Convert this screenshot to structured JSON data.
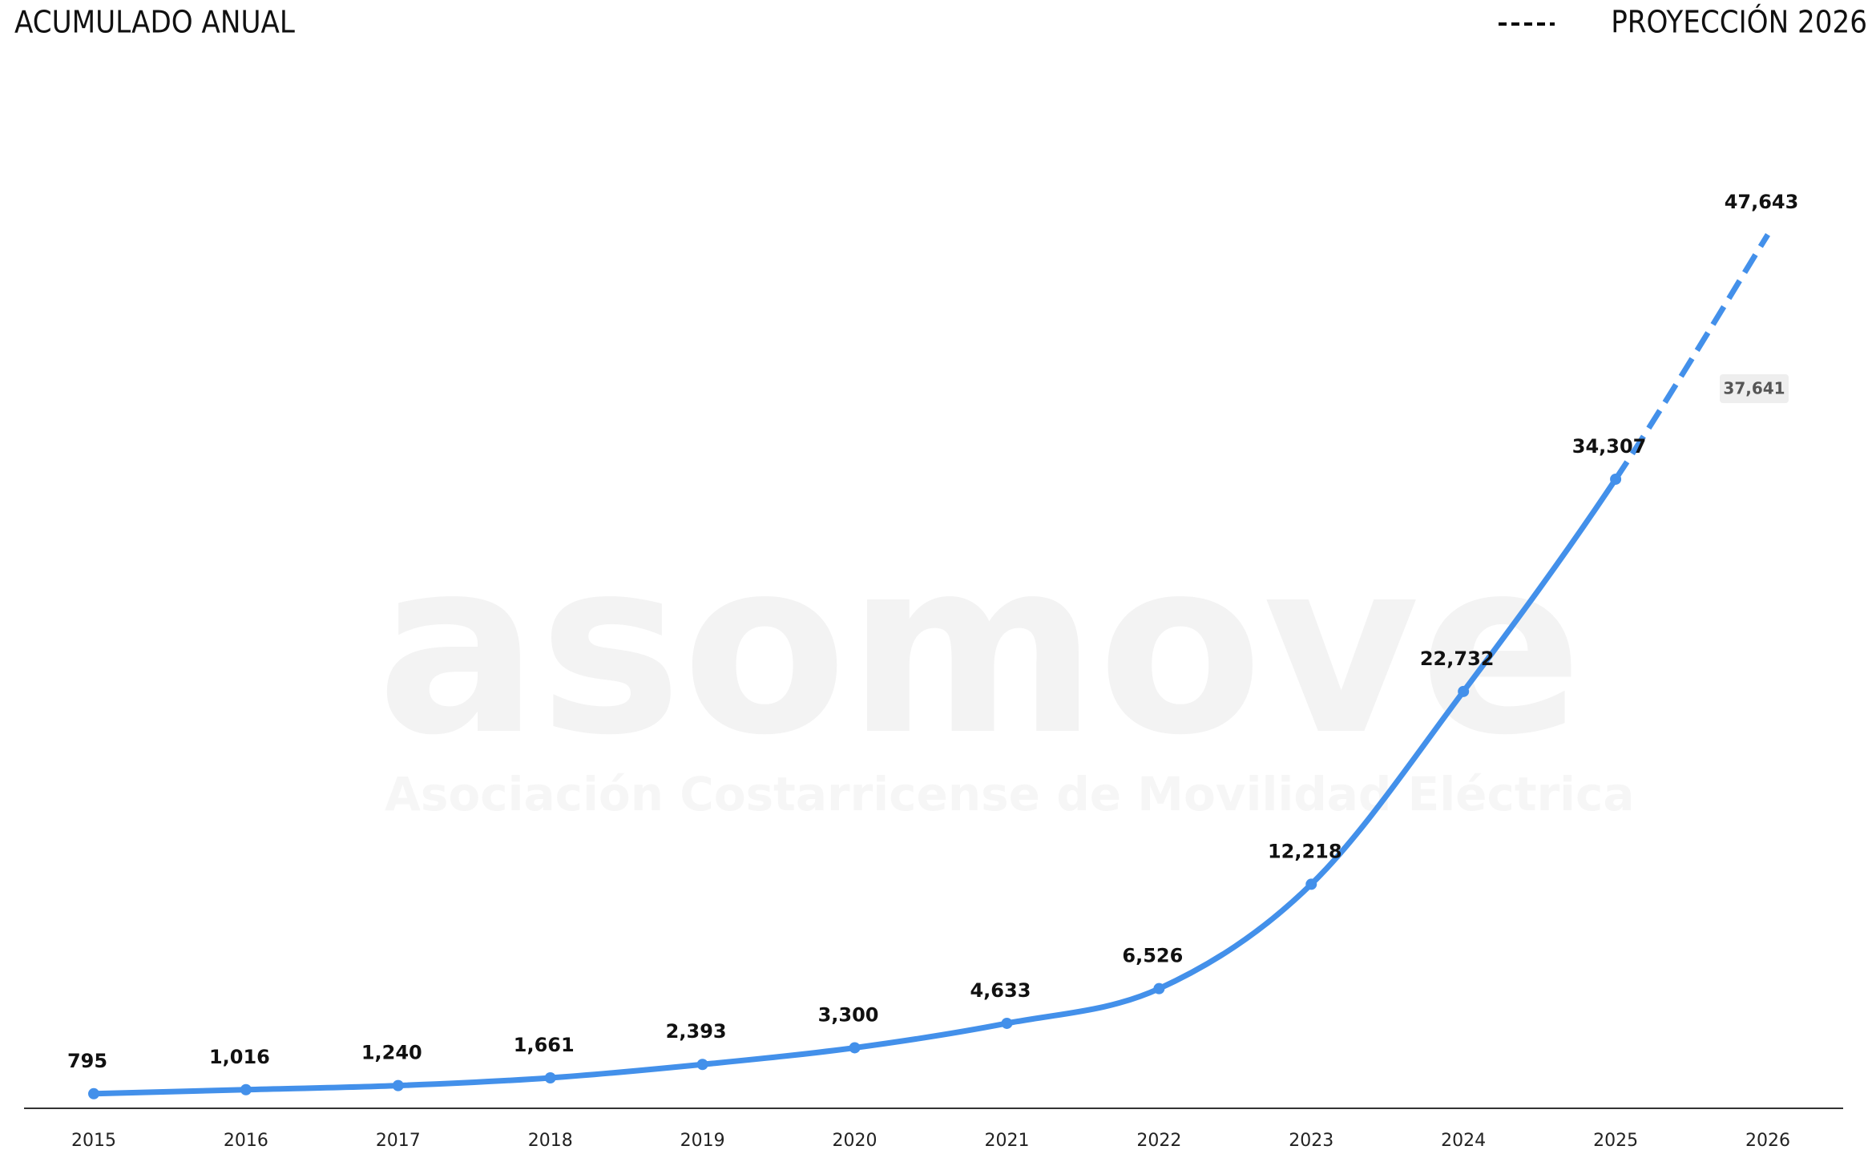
{
  "chart_data": {
    "type": "line",
    "title": "ACUMULADO ANUAL",
    "projection_label": "PROYECCIÓN 2026",
    "categories": [
      "2015",
      "2016",
      "2017",
      "2018",
      "2019",
      "2020",
      "2021",
      "2022",
      "2023",
      "2024",
      "2025",
      "2026"
    ],
    "values": [
      795,
      1016,
      1240,
      1661,
      2393,
      3300,
      4633,
      6526,
      12218,
      22732,
      34307,
      47643
    ],
    "value_labels": [
      "795",
      "1,016",
      "1,240",
      "1,661",
      "2,393",
      "3,300",
      "4,633",
      "6,526",
      "12,218",
      "22,732",
      "34,307",
      "47,643"
    ],
    "dashed_from_index": 10,
    "annotation": "37,641",
    "color": "#4390ea",
    "ylim": [
      0,
      60000
    ],
    "watermark": {
      "logo": "asomove",
      "subtitle": "Asociación Costarricense de Movilidad Eléctrica"
    }
  }
}
